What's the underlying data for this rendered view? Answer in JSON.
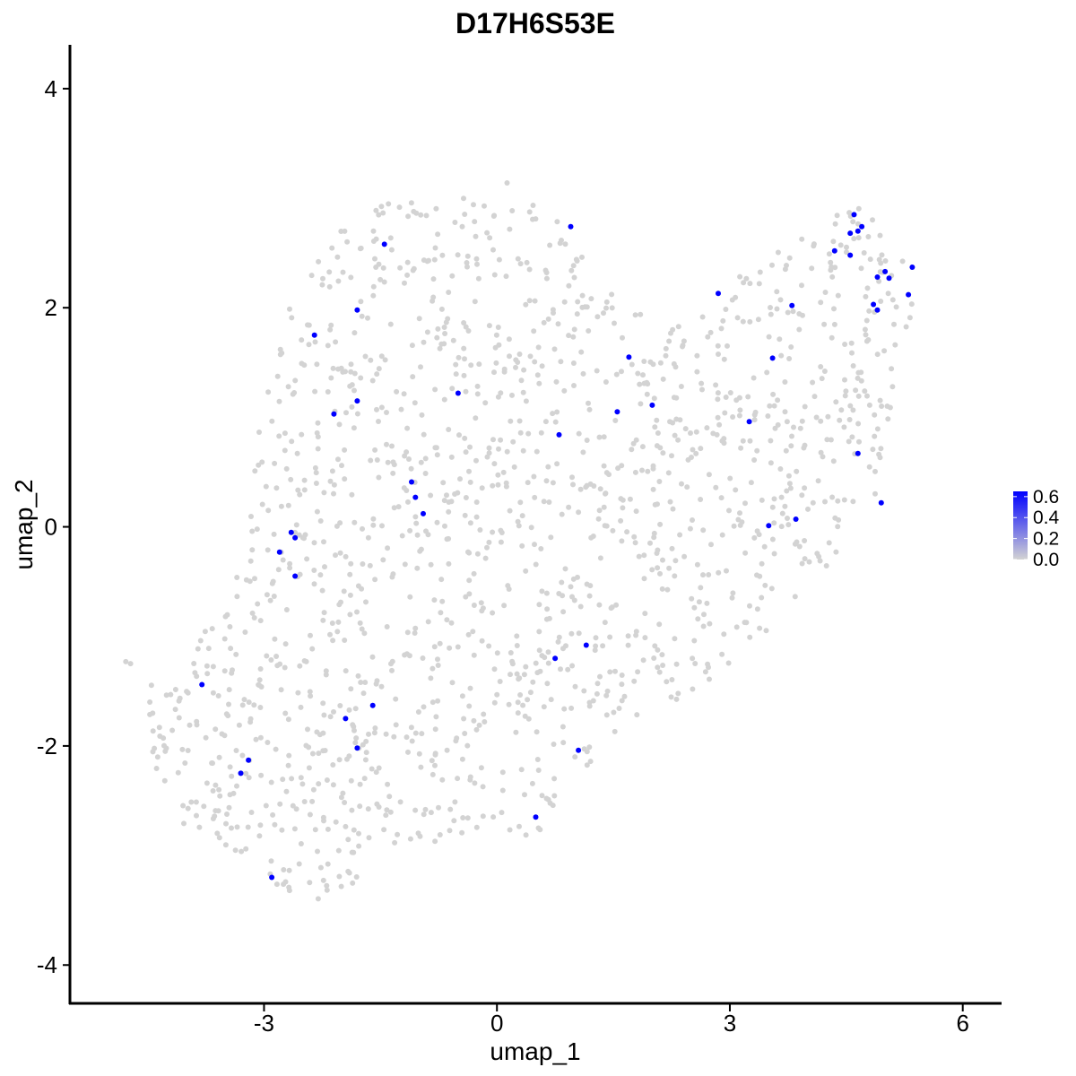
{
  "chart_data": {
    "type": "scatter",
    "title": "D17H6S53E",
    "xlabel": "umap_1",
    "ylabel": "umap_2",
    "xlim": [
      -5.5,
      6.5
    ],
    "ylim": [
      -4.35,
      4.4
    ],
    "x_ticks": [
      -3,
      0,
      3,
      6
    ],
    "x_tick_labels": [
      "-3",
      "0",
      "3",
      "6"
    ],
    "y_ticks": [
      -4,
      -2,
      0,
      2,
      4
    ],
    "y_tick_labels": [
      "-4",
      "-2",
      "0",
      "2",
      "4"
    ],
    "grid": false,
    "legend": {
      "position": "right",
      "type": "colorbar",
      "colors": [
        "#d3d3d3",
        "#0000ff"
      ],
      "ticks": [
        0.0,
        0.2,
        0.4,
        0.6
      ],
      "tick_labels": [
        "0.0",
        "0.2",
        "0.4",
        "0.6"
      ],
      "range": [
        0.0,
        0.65
      ]
    },
    "background_color": "#d3d3d3",
    "background_region": [
      [
        -4.8,
        -1.2
      ],
      [
        -4.2,
        -1.5
      ],
      [
        -3.6,
        -0.7
      ],
      [
        -3.2,
        0.4
      ],
      [
        -2.9,
        1.6
      ],
      [
        -2.4,
        2.5
      ],
      [
        -1.8,
        2.9
      ],
      [
        -0.9,
        3.05
      ],
      [
        0.2,
        3.15
      ],
      [
        1.0,
        2.7
      ],
      [
        1.6,
        2.1
      ],
      [
        2.3,
        1.95
      ],
      [
        2.9,
        2.2
      ],
      [
        3.5,
        2.55
      ],
      [
        4.2,
        2.75
      ],
      [
        4.6,
        3.05
      ],
      [
        5.2,
        2.7
      ],
      [
        5.35,
        2.0
      ],
      [
        5.1,
        1.0
      ],
      [
        4.9,
        0.3
      ],
      [
        4.3,
        -0.4
      ],
      [
        3.6,
        -0.9
      ],
      [
        3.2,
        -1.2
      ],
      [
        2.6,
        -1.5
      ],
      [
        2.0,
        -1.7
      ],
      [
        1.3,
        -2.0
      ],
      [
        0.9,
        -2.6
      ],
      [
        0.4,
        -2.85
      ],
      [
        -0.1,
        -2.95
      ],
      [
        -0.9,
        -2.9
      ],
      [
        -1.5,
        -3.0
      ],
      [
        -2.2,
        -3.5
      ],
      [
        -2.9,
        -3.3
      ],
      [
        -3.5,
        -3.0
      ],
      [
        -4.1,
        -2.7
      ],
      [
        -4.4,
        -2.2
      ]
    ],
    "series": [
      {
        "color": "#0000ff",
        "x": [
          -1.45,
          0.95,
          -1.8,
          -2.35,
          -1.8,
          -2.1,
          -0.5,
          2.85,
          1.7,
          2.0,
          1.55,
          0.8,
          -1.1,
          -1.05,
          -0.95,
          -2.65,
          -2.6,
          -2.8,
          -2.6,
          3.25,
          3.55,
          3.8,
          3.5,
          3.85,
          4.35,
          4.55,
          4.6,
          4.65,
          4.7,
          4.55,
          4.9,
          5.0,
          5.05,
          4.85,
          4.9,
          5.3,
          5.35,
          4.65,
          4.95,
          1.15,
          0.75,
          1.05,
          0.5,
          -3.8,
          -1.6,
          -1.95,
          -1.8,
          -3.2,
          -3.3,
          -2.9
        ],
        "y": [
          2.58,
          2.74,
          1.98,
          1.75,
          1.15,
          1.03,
          1.22,
          2.13,
          1.55,
          1.11,
          1.05,
          0.84,
          0.41,
          0.27,
          0.12,
          -0.05,
          -0.1,
          -0.23,
          -0.45,
          0.96,
          1.54,
          2.02,
          0.01,
          0.07,
          2.52,
          2.68,
          2.85,
          2.7,
          2.74,
          2.48,
          2.28,
          2.33,
          2.27,
          2.03,
          1.98,
          2.12,
          2.37,
          0.67,
          0.22,
          -1.08,
          -1.2,
          -2.04,
          -2.65,
          -1.44,
          -1.63,
          -1.75,
          -2.02,
          -2.13,
          -2.25,
          -3.2
        ],
        "value": 0.65
      }
    ]
  }
}
